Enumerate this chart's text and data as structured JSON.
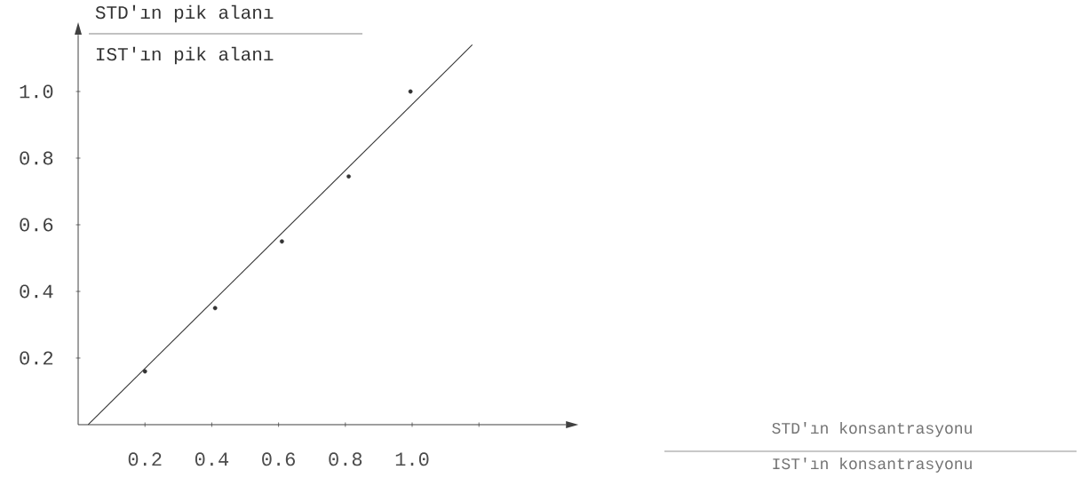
{
  "chart_data": {
    "type": "scatter",
    "ylabel": "STD'ın pik alanı",
    "annotations": [
      "IST'ın pik alanı",
      "STD'ın konsantrasyonu",
      "IST'ın konsantrasyonu"
    ],
    "x": [
      0.2,
      0.41,
      0.61,
      0.81,
      0.995
    ],
    "series": [
      {
        "color": "#333333",
        "values": [
          0.16,
          0.35,
          0.55,
          0.745,
          1.0
        ],
        "marker": "circle"
      },
      {
        "type": "line",
        "color": "#333333",
        "x": [
          0.03,
          1.18
        ],
        "values": [
          0,
          1.14
        ],
        "marker": "none",
        "line_style": "solid"
      }
    ],
    "xlim": [
      0,
      1.46
    ],
    "ylim": [
      0,
      1.17
    ],
    "xticks": [
      0.2,
      0.4,
      0.6,
      0.8,
      {
        "value": 1,
        "label": "1.0"
      },
      {
        "value": 1.2,
        "label": null
      }
    ],
    "yticks": [
      0.2,
      0.4,
      0.6,
      0.8,
      {
        "value": 1,
        "label": "1.0"
      }
    ]
  }
}
